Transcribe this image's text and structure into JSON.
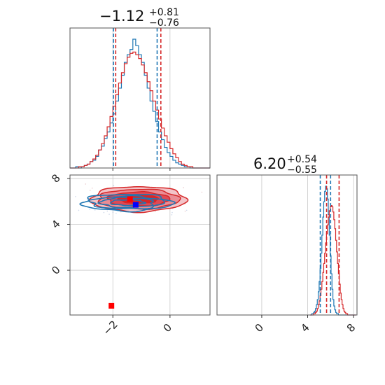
{
  "colors": {
    "blue": "#1f77b4",
    "red": "#d62728",
    "marker_blue": "#0000ff",
    "marker_red": "#ff0000",
    "grid": "#c8c8c8",
    "frame": "#555555"
  },
  "titles": {
    "p1": {
      "main": "−1.12",
      "sup": "+0.81",
      "sub": "−0.76"
    },
    "p2": {
      "main": "6.20",
      "sup": "+0.54",
      "sub": "−0.55"
    }
  },
  "chart_data": {
    "type": "corner",
    "params": [
      "p1",
      "p2"
    ],
    "ranges": {
      "p1": [
        -3.5,
        1.4
      ],
      "p2": [
        -3.9,
        8.3
      ]
    },
    "ticks": {
      "p1": [
        -2,
        0
      ],
      "p2_y": [
        0,
        4,
        8
      ],
      "p2_x": [
        0,
        4,
        8
      ]
    },
    "tick_labels": {
      "p1": [
        "−2",
        "0"
      ],
      "p2_y": [
        "0",
        "4",
        "8"
      ],
      "p2_x": [
        "0",
        "4",
        "8"
      ]
    },
    "grid": true,
    "hist_p1_bins": [
      -3.5,
      1.4,
      49
    ],
    "hist_p1": {
      "blue": [
        0,
        0,
        1,
        0,
        1,
        2,
        3,
        5,
        6,
        9,
        14,
        17,
        23,
        28,
        35,
        42,
        52,
        62,
        72,
        82,
        88,
        92,
        100,
        95,
        88,
        82,
        72,
        62,
        52,
        44,
        36,
        28,
        22,
        16,
        12,
        9,
        6,
        4,
        3,
        2,
        1,
        1,
        0,
        0,
        0,
        0,
        0,
        0,
        0
      ],
      "red": [
        0,
        0,
        0,
        1,
        1,
        2,
        3,
        5,
        7,
        10,
        14,
        19,
        25,
        32,
        40,
        48,
        57,
        66,
        74,
        81,
        86,
        89,
        90,
        88,
        85,
        80,
        74,
        67,
        60,
        52,
        45,
        38,
        31,
        25,
        20,
        15,
        11,
        8,
        5,
        3,
        2,
        1,
        1,
        0,
        0,
        0,
        0,
        0,
        0
      ]
    },
    "quantile_lines_p1": {
      "blue": [
        -1.98,
        -0.45
      ],
      "red": [
        -1.9,
        -0.32
      ]
    },
    "hist_p2_bins": [
      4.2,
      8.2,
      50
    ],
    "hist_p2": {
      "blue": [
        0,
        0,
        1,
        1,
        2,
        3,
        5,
        8,
        12,
        18,
        26,
        36,
        48,
        62,
        76,
        88,
        96,
        100,
        98,
        90,
        78,
        62,
        46,
        32,
        20,
        12,
        7,
        4,
        2,
        1,
        1,
        0,
        0,
        0,
        0,
        0,
        0,
        0,
        0,
        0,
        0,
        0,
        0,
        0,
        0,
        0,
        0,
        0,
        0,
        0
      ],
      "red": [
        0,
        0,
        0,
        0,
        1,
        1,
        2,
        3,
        5,
        8,
        11,
        15,
        20,
        26,
        33,
        40,
        48,
        56,
        63,
        70,
        76,
        81,
        84,
        85,
        84,
        80,
        74,
        67,
        58,
        49,
        40,
        32,
        24,
        17,
        12,
        8,
        5,
        3,
        2,
        1,
        1,
        0,
        0,
        0,
        0,
        0,
        0,
        0,
        0,
        0
      ]
    },
    "quantile_lines_p2": {
      "blue": [
        5.1,
        6.0
      ],
      "red": [
        5.65,
        6.74
      ]
    },
    "contour_center": {
      "blue": [
        -1.5,
        5.9
      ],
      "red": [
        -1.1,
        6.2
      ]
    },
    "markers": [
      {
        "x": -1.2,
        "y": 5.7,
        "color": "blue"
      },
      {
        "x": -1.4,
        "y": 6.2,
        "color": "red"
      },
      {
        "x": -2.05,
        "y": -3.1,
        "color": "red"
      }
    ]
  }
}
